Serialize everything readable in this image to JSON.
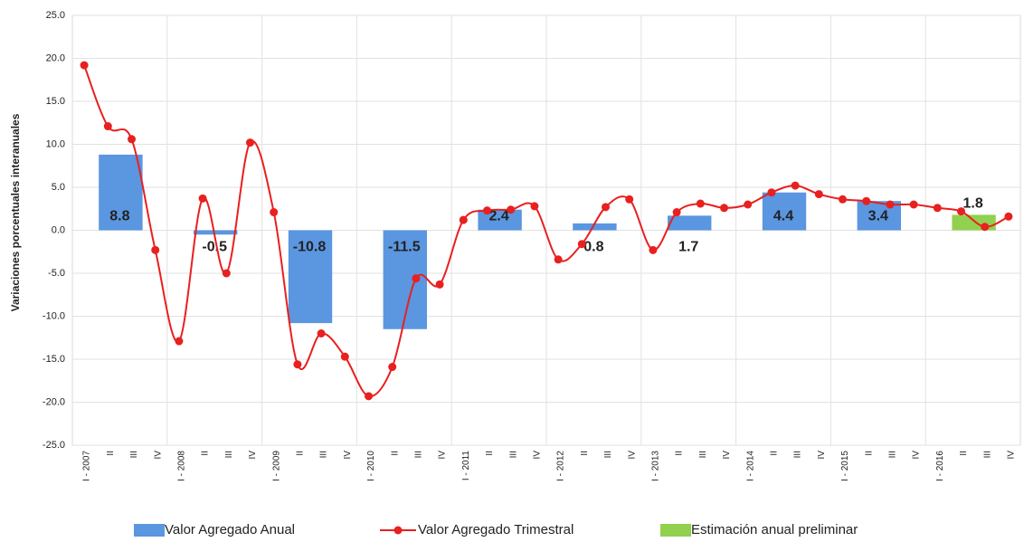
{
  "chart_data": {
    "type": "bar-line",
    "y_axis_label": "Variaciones porcentuales interanuales",
    "categories": [
      "I - 2007",
      "II",
      "III",
      "IV",
      "I - 2008",
      "II",
      "III",
      "IV",
      "I - 2009",
      "II",
      "III",
      "IV",
      "I - 2010",
      "II",
      "III",
      "IV",
      "I - 2011",
      "II",
      "III",
      "IV",
      "I - 2012",
      "II",
      "III",
      "IV",
      "I - 2013",
      "II",
      "III",
      "IV",
      "I - 2014",
      "II",
      "III",
      "IV",
      "I - 2015",
      "II",
      "III",
      "IV",
      "I - 2016",
      "II",
      "III",
      "IV"
    ],
    "series": [
      {
        "name": "Valor Agregado Anual",
        "type": "bar",
        "color": "#5b96e0",
        "values": [
          null,
          8.8,
          null,
          null,
          null,
          -0.5,
          null,
          null,
          null,
          -10.8,
          null,
          null,
          null,
          -11.5,
          null,
          null,
          null,
          2.4,
          null,
          null,
          null,
          0.8,
          null,
          null,
          null,
          1.7,
          null,
          null,
          null,
          4.4,
          null,
          null,
          null,
          3.4,
          null,
          null,
          null,
          null,
          null,
          null
        ]
      },
      {
        "name": "Valor Agregado Trimestral",
        "type": "line",
        "color": "#e8201f",
        "values": [
          19.2,
          12.1,
          10.6,
          -2.3,
          -12.9,
          3.7,
          -5.0,
          10.2,
          2.1,
          -15.6,
          -12.0,
          -14.7,
          -19.3,
          -15.9,
          -5.6,
          -6.3,
          1.2,
          2.3,
          2.4,
          2.8,
          -3.4,
          -1.6,
          2.7,
          3.6,
          -2.3,
          2.1,
          3.1,
          2.6,
          3.0,
          4.4,
          5.2,
          4.2,
          3.6,
          3.4,
          3.0,
          3.0,
          2.6,
          2.2,
          0.4,
          1.6
        ]
      },
      {
        "name": "Estimación anual preliminar",
        "type": "bar",
        "color": "#92d050",
        "values": [
          null,
          null,
          null,
          null,
          null,
          null,
          null,
          null,
          null,
          null,
          null,
          null,
          null,
          null,
          null,
          null,
          null,
          null,
          null,
          null,
          null,
          null,
          null,
          null,
          null,
          null,
          null,
          null,
          null,
          null,
          null,
          null,
          null,
          null,
          null,
          null,
          null,
          1.8,
          null,
          null
        ]
      }
    ],
    "ylim": [
      -25,
      25
    ],
    "yticks": [
      {
        "value": -25,
        "label": "-25.0"
      },
      {
        "value": -20,
        "label": "-20.0"
      },
      {
        "value": -15,
        "label": "-15.0"
      },
      {
        "value": -10,
        "label": "-10.0"
      },
      {
        "value": -5,
        "label": "-5.0"
      },
      {
        "value": 0,
        "label": "0.0"
      },
      {
        "value": 5,
        "label": "5.0"
      },
      {
        "value": 10,
        "label": "10.0"
      },
      {
        "value": 15,
        "label": "15.0"
      },
      {
        "value": 20,
        "label": "20.0"
      },
      {
        "value": 25,
        "label": "25.0"
      }
    ],
    "grid": true
  }
}
